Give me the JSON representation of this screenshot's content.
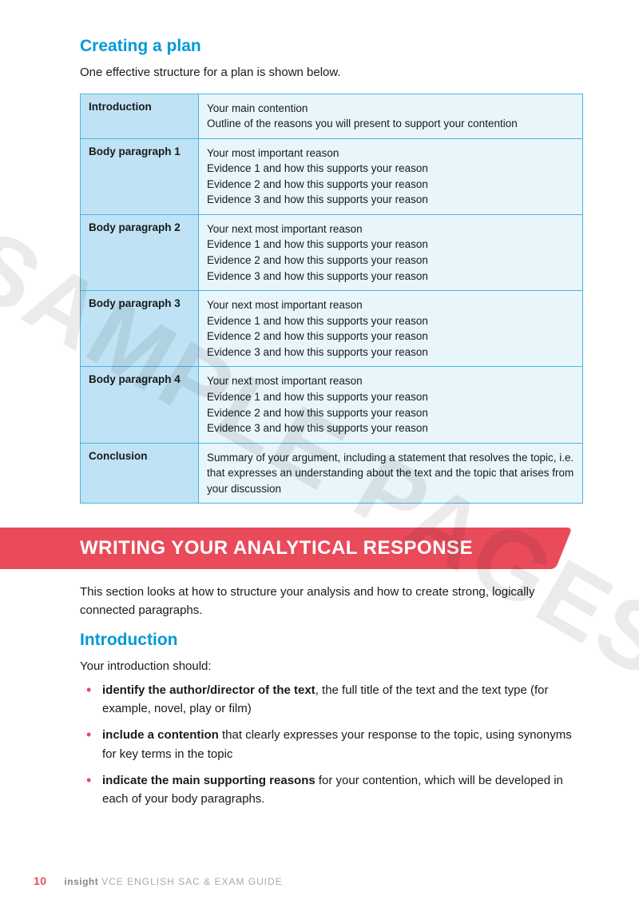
{
  "watermark": "SAMPLE PAGES",
  "section1": {
    "heading": "Creating a plan",
    "intro": "One effective structure for a plan is shown below."
  },
  "plan_table": {
    "header_bg": "#bfe3f4",
    "cell_bg": "#e8f5fb",
    "border_color": "#4bb4e6",
    "rows": [
      {
        "label": "Introduction",
        "lines": [
          "Your main contention",
          "Outline of the reasons you will present to support your contention"
        ]
      },
      {
        "label": "Body paragraph 1",
        "lines": [
          "Your most important reason",
          "Evidence 1 and how this supports your reason",
          "Evidence 2 and how this supports your reason",
          "Evidence 3 and how this supports your reason"
        ]
      },
      {
        "label": "Body paragraph 2",
        "lines": [
          "Your next most important reason",
          "Evidence 1 and how this supports your reason",
          "Evidence 2 and how this supports your reason",
          "Evidence 3 and how this supports your reason"
        ]
      },
      {
        "label": "Body paragraph 3",
        "lines": [
          "Your next most important reason",
          "Evidence 1 and how this supports your reason",
          "Evidence 2 and how this supports your reason",
          "Evidence 3 and how this supports your reason"
        ]
      },
      {
        "label": "Body paragraph 4",
        "lines": [
          "Your next most important reason",
          "Evidence 1 and how this supports your reason",
          "Evidence 2 and how this supports your reason",
          "Evidence 3 and how this supports your reason"
        ]
      },
      {
        "label": "Conclusion",
        "lines": [
          "Summary of your argument, including a statement that resolves the topic, i.e. that expresses an understanding about the text and the topic that arises from your discussion"
        ]
      }
    ]
  },
  "banner": {
    "text": "WRITING YOUR ANALYTICAL RESPONSE",
    "bg": "#e94b5b"
  },
  "section2": {
    "intro": "This section looks at how to structure your analysis and how to create strong, logically connected paragraphs.",
    "heading": "Introduction",
    "lead": "Your introduction should:",
    "bullets": [
      {
        "bold": "identify the author/director of the text",
        "rest": ", the full title of the text and the text type (for example, novel, play or film)"
      },
      {
        "bold": "include a contention",
        "rest": " that clearly expresses your response to the topic, using synonyms for key terms in the topic"
      },
      {
        "bold": "indicate the main supporting reasons",
        "rest": " for your contention, which will be developed in each of your body paragraphs."
      }
    ]
  },
  "footer": {
    "page_number": "10",
    "brand": "insight",
    "title": "VCE ENGLISH SAC & EXAM GUIDE"
  },
  "colors": {
    "heading_blue": "#0099d8",
    "accent_red": "#e94b5b",
    "text": "#1a1a1a"
  }
}
